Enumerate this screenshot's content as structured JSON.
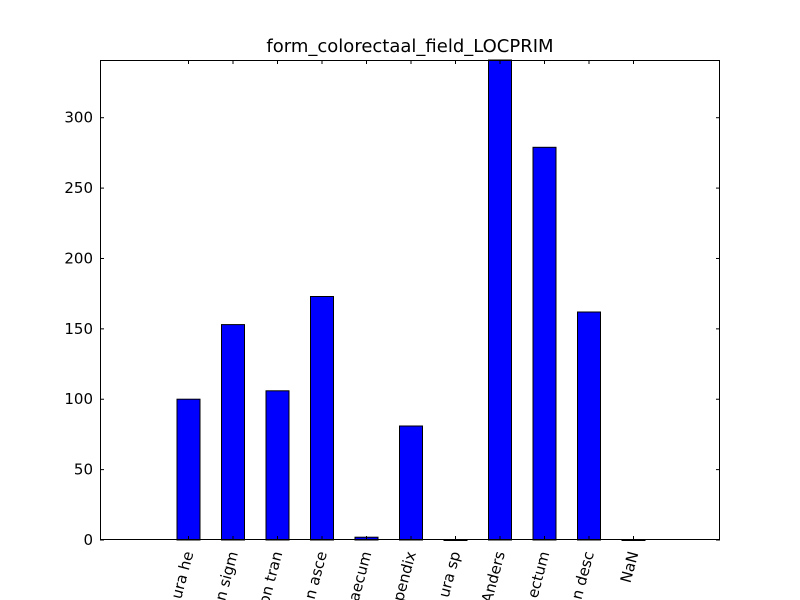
{
  "chart_data": {
    "type": "bar",
    "title": "form_colorectaal_field_LOCPRIM",
    "xlabel": "",
    "ylabel": "",
    "categories": [
      "ura he",
      "n sigm",
      "on tran",
      "n asce",
      "aecum",
      "pendix",
      "ura sp",
      "Anders",
      "ectum",
      "n desc",
      "NaN"
    ],
    "values": [
      100,
      153,
      106,
      173,
      2,
      81,
      0,
      341,
      279,
      162,
      0
    ],
    "ylim": [
      0,
      341
    ],
    "yticks": [
      0,
      50,
      100,
      150,
      200,
      250,
      300
    ],
    "bar_color": "#0000ff",
    "edge_color": "#000000",
    "grid": false,
    "legend": "none"
  }
}
